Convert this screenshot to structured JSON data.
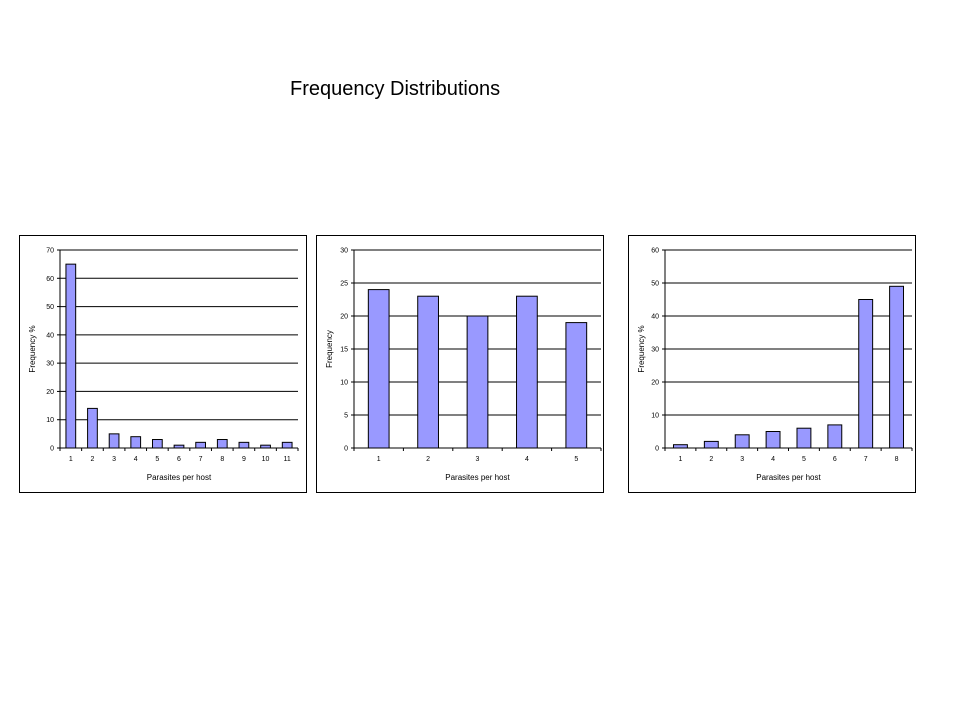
{
  "page": {
    "title": "Frequency Distributions"
  },
  "colors": {
    "bar_fill": "#9999ff",
    "bar_stroke": "#000000",
    "grid": "#000000",
    "background": "#ffffff"
  },
  "chart_data": [
    {
      "type": "bar",
      "title": "",
      "xlabel": "Parasites per host",
      "ylabel": "Frequency %",
      "categories": [
        "1",
        "2",
        "3",
        "4",
        "5",
        "6",
        "7",
        "8",
        "9",
        "10",
        "11"
      ],
      "values": [
        65,
        14,
        5,
        4,
        3,
        1,
        2,
        3,
        2,
        1,
        2
      ],
      "ylim": [
        0,
        70
      ],
      "yticks": [
        0,
        10,
        20,
        30,
        40,
        50,
        60,
        70
      ],
      "grid": true,
      "legend": "none"
    },
    {
      "type": "bar",
      "title": "",
      "xlabel": "Parasites per host",
      "ylabel": "Frequency",
      "categories": [
        "1",
        "2",
        "3",
        "4",
        "5"
      ],
      "values": [
        24,
        23,
        20,
        23,
        19
      ],
      "ylim": [
        0,
        30
      ],
      "yticks": [
        0,
        5,
        10,
        15,
        20,
        25,
        30
      ],
      "grid": true,
      "legend": "none"
    },
    {
      "type": "bar",
      "title": "",
      "xlabel": "Parasites per host",
      "ylabel": "Frequency %",
      "categories": [
        "1",
        "2",
        "3",
        "4",
        "5",
        "6",
        "7",
        "8"
      ],
      "values": [
        1,
        2,
        4,
        5,
        6,
        7,
        45,
        49
      ],
      "ylim": [
        0,
        60
      ],
      "yticks": [
        0,
        10,
        20,
        30,
        40,
        50,
        60
      ],
      "grid": true,
      "legend": "none"
    }
  ]
}
